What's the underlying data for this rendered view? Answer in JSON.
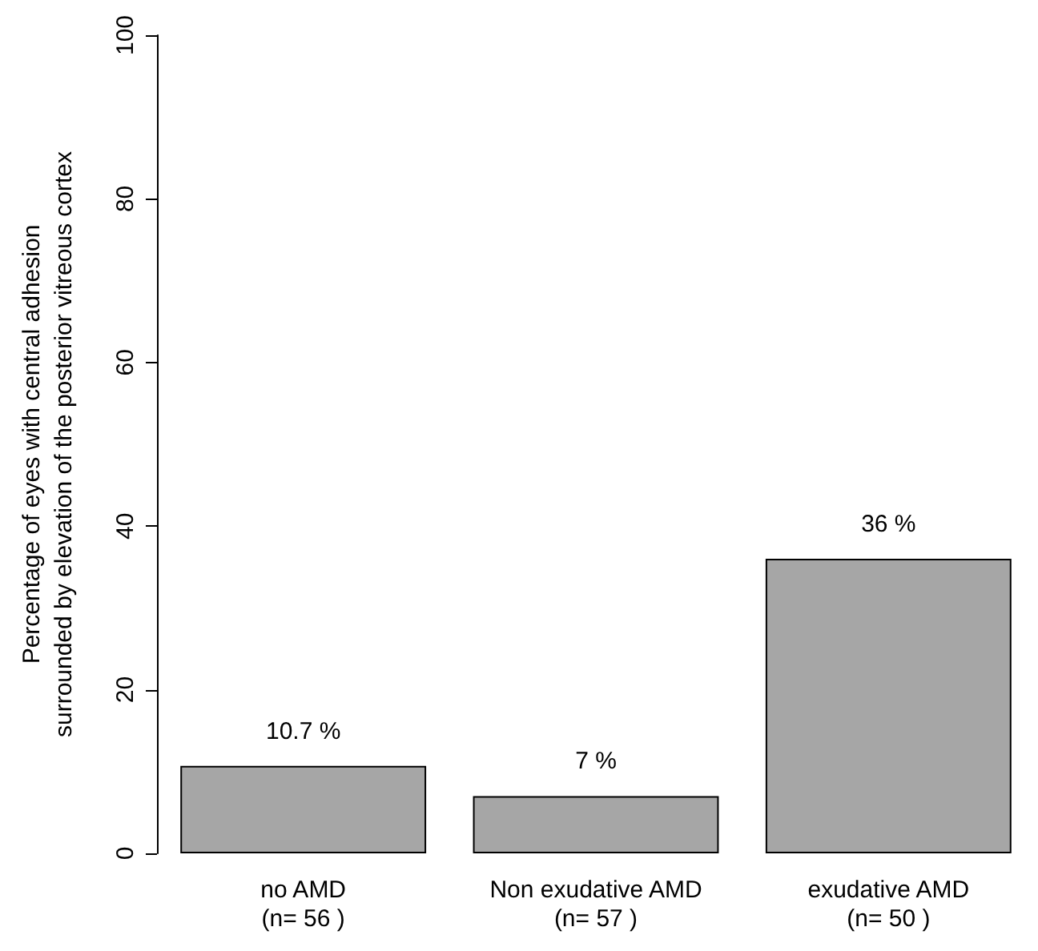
{
  "chart_data": {
    "type": "bar",
    "ylabel": "Percentage of eyes with central adhesion\nsurrounded by elevation of the posterior vitreous cortex",
    "categories": [
      "no AMD\n(n= 56 )",
      "Non exudative AMD\n(n= 57 )",
      "exudative AMD\n(n= 50 )"
    ],
    "values": [
      10.7,
      7,
      36
    ],
    "color": "#a6a6a6",
    "value_labels": [
      "10.7 %",
      "7 %",
      "36 %"
    ],
    "ylim": [
      0,
      100
    ],
    "yticks": [
      0,
      20,
      40,
      60,
      80,
      100
    ],
    "grid": false
  }
}
